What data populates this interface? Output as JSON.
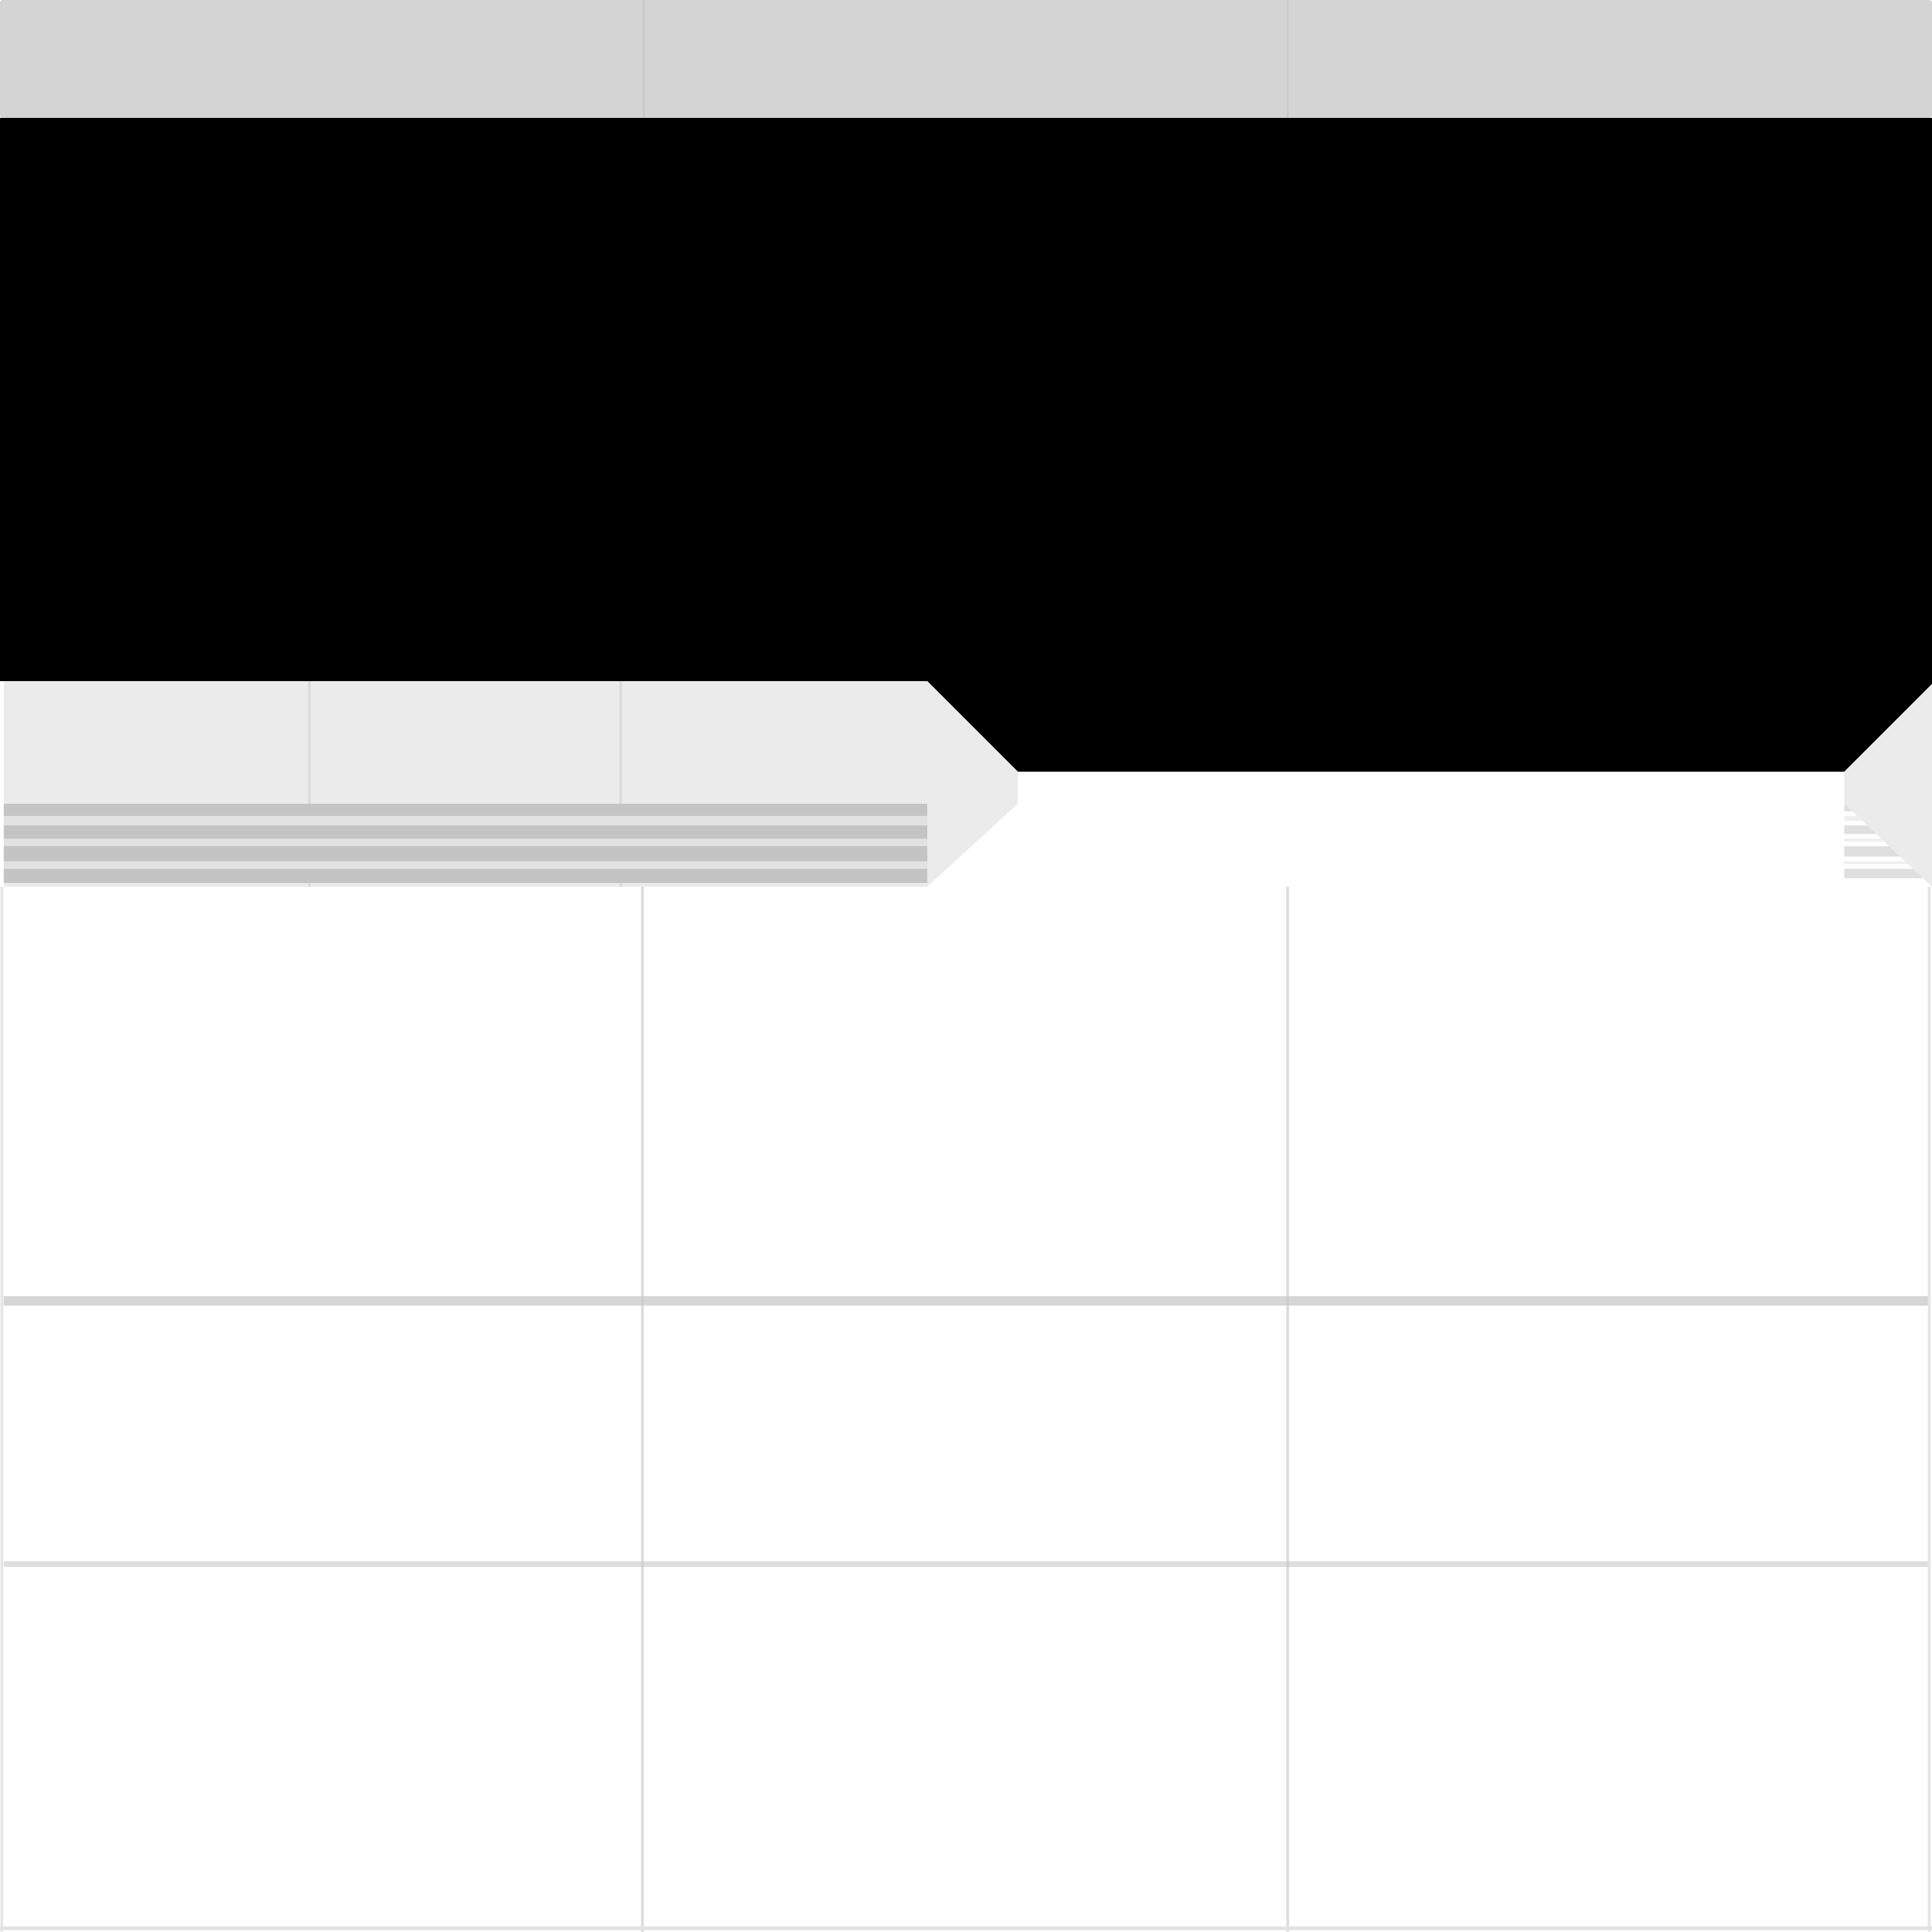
{
  "window": {
    "title": ""
  },
  "header_bar": {
    "columns": [
      "",
      "",
      ""
    ]
  },
  "tabs": [
    {
      "label": "",
      "active": false
    },
    {
      "label": "",
      "active": false
    },
    {
      "label": "",
      "active": false
    },
    {
      "label": "",
      "active": true
    }
  ],
  "grid": {
    "columns": 3,
    "rows": 3,
    "cells": [
      [
        "",
        "",
        ""
      ],
      [
        "",
        "",
        ""
      ],
      [
        "",
        "",
        ""
      ]
    ]
  },
  "colors": {
    "header_bg": "#d4d4d4",
    "backdrop": "#000000",
    "tab_inactive_bg": "#ebebeb",
    "tab_active_bg": "#ffffff",
    "tab_stripe": "#c4c4c4",
    "tab_stripe_light": "#e2e2e2",
    "grid_line": "#dddddd",
    "row_divider": "#c8c8c8",
    "panel_bg": "#ffffff"
  }
}
